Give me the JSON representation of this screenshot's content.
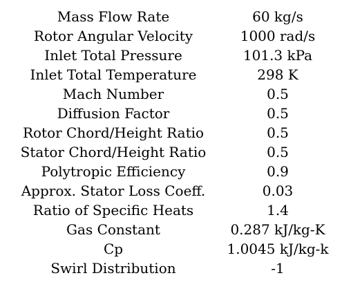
{
  "parameters": {
    "rows": [
      {
        "name": "Mass Flow Rate",
        "value": "60 kg/s"
      },
      {
        "name": "Rotor Angular Velocity",
        "value": "1000 rad/s"
      },
      {
        "name": "Inlet Total Pressure",
        "value": "101.3 kPa"
      },
      {
        "name": "Inlet Total Temperature",
        "value": "298 K"
      },
      {
        "name": "Mach Number",
        "value": "0.5"
      },
      {
        "name": "Diffusion Factor",
        "value": "0.5"
      },
      {
        "name": "Rotor Chord/Height Ratio",
        "value": "0.5"
      },
      {
        "name": "Stator Chord/Height Ratio",
        "value": "0.5"
      },
      {
        "name": "Polytropic Efficiency",
        "value": "0.9"
      },
      {
        "name": "Approx. Stator Loss Coeff.",
        "value": "0.03"
      },
      {
        "name": "Ratio of Specific Heats",
        "value": "1.4"
      },
      {
        "name": "Gas Constant",
        "value": "0.287 kJ/kg-K"
      },
      {
        "name": "Cp",
        "value": "1.0045 kJ/kg-k"
      },
      {
        "name": "Swirl Distribution",
        "value": "-1"
      }
    ]
  }
}
